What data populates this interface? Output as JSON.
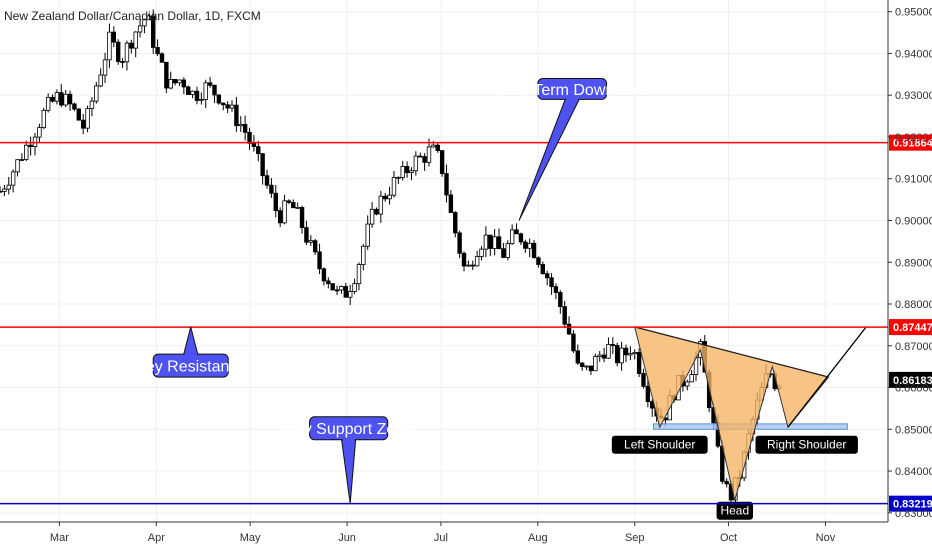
{
  "chart_data": {
    "type": "candlestick",
    "title": "New Zealand Dollar/Canadian Dollar, 1D, FXCM",
    "months": [
      "Mar",
      "Apr",
      "May",
      "Jun",
      "Jul",
      "Aug",
      "Sep",
      "Oct",
      "Nov"
    ],
    "month_days": [
      1,
      32,
      62,
      93,
      123,
      154,
      185,
      215,
      246
    ],
    "y_ticks": [
      "0.95000",
      "0.94000",
      "0.93000",
      "0.92000",
      "0.91000",
      "0.90000",
      "0.89000",
      "0.88000",
      "0.87000",
      "0.86000",
      "0.85000",
      "0.84000",
      "0.83000"
    ],
    "y_tick_values": [
      0.95,
      0.94,
      0.93,
      0.92,
      0.91,
      0.9,
      0.89,
      0.88,
      0.87,
      0.86,
      0.85,
      0.84,
      0.83
    ],
    "ylim": [
      0.8278,
      0.9528
    ],
    "xlim_day": [
      -18,
      266
    ],
    "grid": true,
    "price_path": [
      [
        -18,
        0.907
      ],
      [
        -13,
        0.913
      ],
      [
        -8,
        0.92
      ],
      [
        -3,
        0.927
      ],
      [
        1,
        0.93
      ],
      [
        5,
        0.927
      ],
      [
        9,
        0.922
      ],
      [
        13,
        0.933
      ],
      [
        17,
        0.943
      ],
      [
        21,
        0.939
      ],
      [
        25,
        0.945
      ],
      [
        29,
        0.949
      ],
      [
        32,
        0.94
      ],
      [
        36,
        0.932
      ],
      [
        40,
        0.934
      ],
      [
        44,
        0.93
      ],
      [
        48,
        0.932
      ],
      [
        52,
        0.93
      ],
      [
        56,
        0.926
      ],
      [
        60,
        0.922
      ],
      [
        64,
        0.915
      ],
      [
        68,
        0.907
      ],
      [
        71,
        0.901
      ],
      [
        75,
        0.904
      ],
      [
        78,
        0.9
      ],
      [
        81,
        0.894
      ],
      [
        84,
        0.889
      ],
      [
        87,
        0.886
      ],
      [
        90,
        0.882
      ],
      [
        93,
        0.883
      ],
      [
        96,
        0.888
      ],
      [
        99,
        0.896
      ],
      [
        102,
        0.903
      ],
      [
        105,
        0.906
      ],
      [
        108,
        0.909
      ],
      [
        111,
        0.911
      ],
      [
        114,
        0.914
      ],
      [
        117,
        0.915
      ],
      [
        120,
        0.917
      ],
      [
        123,
        0.914
      ],
      [
        126,
        0.902
      ],
      [
        129,
        0.893
      ],
      [
        131,
        0.887
      ],
      [
        134,
        0.893
      ],
      [
        137,
        0.896
      ],
      [
        140,
        0.894
      ],
      [
        143,
        0.892
      ],
      [
        146,
        0.896
      ],
      [
        149,
        0.896
      ],
      [
        152,
        0.894
      ],
      [
        155,
        0.89
      ],
      [
        158,
        0.885
      ],
      [
        161,
        0.88
      ],
      [
        164,
        0.873
      ],
      [
        167,
        0.864
      ],
      [
        170,
        0.864
      ],
      [
        173,
        0.867
      ],
      [
        176,
        0.87
      ],
      [
        179,
        0.867
      ],
      [
        182,
        0.868
      ],
      [
        184,
        0.87
      ],
      [
        187,
        0.864
      ],
      [
        190,
        0.857
      ],
      [
        193,
        0.853
      ],
      [
        195,
        0.854
      ],
      [
        198,
        0.86
      ],
      [
        201,
        0.862
      ],
      [
        204,
        0.866
      ],
      [
        206,
        0.869
      ],
      [
        209,
        0.856
      ],
      [
        212,
        0.842
      ],
      [
        214,
        0.836
      ],
      [
        216,
        0.834
      ],
      [
        219,
        0.84
      ],
      [
        222,
        0.85
      ],
      [
        225,
        0.858
      ],
      [
        228,
        0.864
      ],
      [
        230,
        0.861
      ],
      [
        232,
        0.8618
      ]
    ],
    "levels": [
      {
        "label": "0.91864",
        "value": 0.91864,
        "color": "#ff0000"
      },
      {
        "label": "0.87447",
        "value": 0.87447,
        "color": "#ff0000"
      },
      {
        "label": "0.83219",
        "value": 0.83219,
        "color": "#0000cc"
      }
    ],
    "last_price": {
      "label": "0.86183",
      "value": 0.86183
    },
    "support_zone": {
      "x1": 191,
      "x2": 253,
      "y1": 0.85,
      "y2": 0.8513
    },
    "inverse_head_and_shoulders": {
      "fill": "#f6b463",
      "shape": [
        [
          185,
          0.8745
        ],
        [
          193,
          0.8505
        ],
        [
          206,
          0.869
        ],
        [
          217,
          0.833
        ],
        [
          229,
          0.865
        ],
        [
          234,
          0.8505
        ],
        [
          247,
          0.8625
        ]
      ],
      "neckline": [
        [
          185,
          0.8745
        ],
        [
          247,
          0.8625
        ]
      ],
      "projection": [
        [
          234,
          0.8505
        ],
        [
          259,
          0.8745
        ]
      ]
    },
    "annotations": [
      {
        "text": "Long Term Downtrend",
        "box_day": [
          154,
          176
        ],
        "box_value": [
          0.934,
          0.929
        ],
        "pointer_day": 148,
        "pointer_value": 0.9
      },
      {
        "text": "Key Resistance",
        "box_day": [
          31,
          55
        ],
        "box_value": [
          0.868,
          0.8625
        ],
        "pointer_day": 43,
        "pointer_value": 0.8745
      },
      {
        "text": "Key Support Zone",
        "box_day": [
          81,
          106
        ],
        "box_value": [
          0.853,
          0.8475
        ],
        "pointer_day": 94,
        "pointer_value": 0.8322
      }
    ],
    "pattern_labels": [
      {
        "text": "Left Shoulder",
        "day": 193,
        "value": 0.8463
      },
      {
        "text": "Head",
        "day": 217,
        "value": 0.8305
      },
      {
        "text": "Right Shoulder",
        "day": 240,
        "value": 0.8463
      }
    ]
  }
}
